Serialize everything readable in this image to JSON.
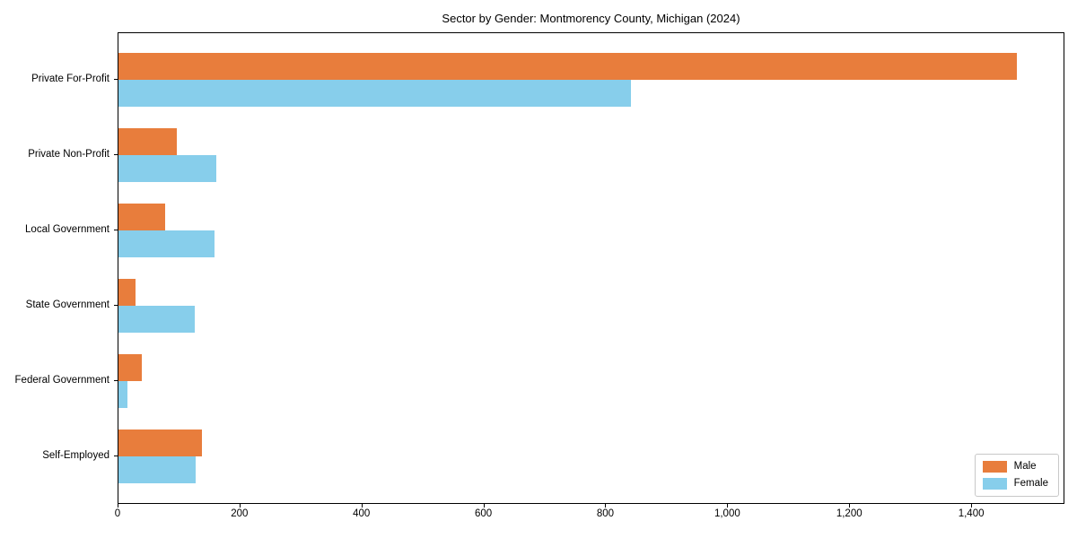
{
  "chart_data": {
    "type": "bar",
    "orientation": "horizontal",
    "title": "Sector by Gender: Montmorency County, Michigan (2024)",
    "categories": [
      "Private For-Profit",
      "Private Non-Profit",
      "Local Government",
      "State Government",
      "Federal Government",
      "Self-Employed"
    ],
    "series": [
      {
        "name": "Male",
        "color": "#e87d3c",
        "values": [
          1473,
          96,
          77,
          28,
          38,
          137
        ]
      },
      {
        "name": "Female",
        "color": "#87ceeb",
        "values": [
          841,
          160,
          157,
          125,
          15,
          127
        ]
      }
    ],
    "xlabel": "",
    "ylabel": "",
    "xlim": [
      0,
      1550
    ],
    "x_ticks": [
      {
        "value": 0,
        "label": "0"
      },
      {
        "value": 200,
        "label": "200"
      },
      {
        "value": 400,
        "label": "400"
      },
      {
        "value": 600,
        "label": "600"
      },
      {
        "value": 800,
        "label": "800"
      },
      {
        "value": 1000,
        "label": "1,000"
      },
      {
        "value": 1200,
        "label": "1,200"
      },
      {
        "value": 1400,
        "label": "1,400"
      }
    ],
    "grid": false,
    "legend_position": "lower right"
  }
}
